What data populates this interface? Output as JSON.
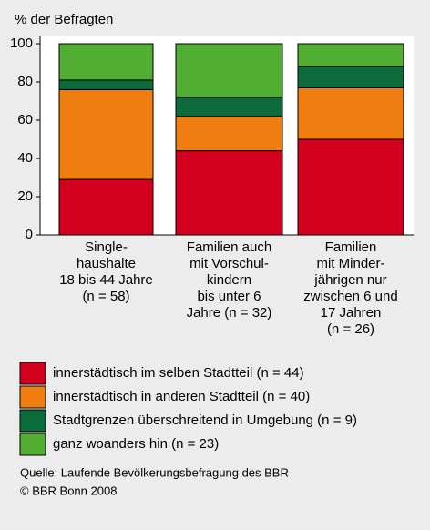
{
  "chart_data": {
    "type": "stacked_bar",
    "ylabel": "% der Befragten",
    "categories": [
      [
        "Single-",
        "haushalte",
        "18 bis 44 Jahre",
        "(n = 58)"
      ],
      [
        "Familien auch",
        "mit Vorschul-",
        "kindern",
        "bis unter 6",
        "Jahre (n = 32)"
      ],
      [
        "Familien",
        "mit Minder-",
        "jährigen nur",
        "zwischen 6 und",
        "17 Jahren",
        "(n = 26)"
      ]
    ],
    "series": [
      {
        "name": "innerstädtisch im selben Stadtteil (n = 44)",
        "color": "#d2001e",
        "values": [
          29,
          44,
          50
        ]
      },
      {
        "name": "innerstädtisch in anderen Stadtteil (n = 40)",
        "color": "#ef7d10",
        "values": [
          47,
          18,
          27
        ]
      },
      {
        "name": "Stadtgrenzen überschreitend in Umgebung (n = 9)",
        "color": "#0c6b3a",
        "values": [
          5,
          10,
          11
        ]
      },
      {
        "name": "ganz woanders hin (n = 23)",
        "color": "#52ad33",
        "values": [
          19,
          28,
          12
        ]
      }
    ],
    "ylim": [
      0,
      100
    ],
    "yticks": [
      0,
      20,
      40,
      60,
      80,
      100
    ],
    "grid": false,
    "source": [
      "Quelle: Laufende Bevölkerungsbefragung  des BBR",
      "© BBR Bonn 2008"
    ]
  }
}
